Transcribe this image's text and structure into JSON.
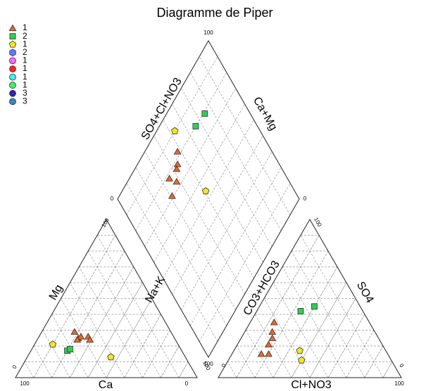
{
  "chart_data": {
    "type": "piper",
    "title": "Diagramme de Piper",
    "grid": true,
    "cations": {
      "bottom_label": "Ca",
      "left_label": "Mg",
      "right_label": "Na+K",
      "ticks": [
        0,
        100
      ]
    },
    "anions": {
      "bottom_label": "Cl+NO3",
      "left_label": "CO3+HCO3",
      "right_label": "SO4",
      "ticks": [
        0,
        100
      ]
    },
    "diamond": {
      "left_label": "SO4+Cl+NO3",
      "right_label": "Ca+Mg",
      "ticks": [
        0,
        100
      ]
    },
    "series": [
      {
        "name": "1",
        "marker": "triangle",
        "color": "#e8682a",
        "label_color": "#993300",
        "Mg": [
          29,
          25,
          26,
          26,
          24,
          24
        ],
        "NaK": [
          18,
          22,
          23,
          27,
          29,
          22
        ],
        "SO4": [
          35,
          29,
          25,
          21,
          15,
          15
        ],
        "Cl": [
          13,
          15,
          17,
          17,
          16,
          20
        ]
      },
      {
        "name": "2",
        "marker": "square",
        "color": "#33cc55",
        "label_color": "#006600",
        "Mg": [
          17,
          18
        ],
        "NaK": [
          20,
          21
        ],
        "SO4": [
          42,
          45
        ],
        "Cl": [
          24,
          30
        ]
      },
      {
        "name": "1",
        "marker": "pentagon",
        "color": "#f5e625",
        "label_color": "#999900",
        "Mg": [
          21,
          13
        ],
        "NaK": [
          10,
          46
        ],
        "SO4": [
          17,
          11
        ],
        "Cl": [
          36,
          40
        ]
      },
      {
        "name": "2",
        "marker": "hexagon",
        "color": "#6677ff",
        "label_color": "#3333cc",
        "Mg": [],
        "NaK": [],
        "SO4": [],
        "Cl": []
      },
      {
        "name": "1",
        "marker": "circle",
        "color": "#ff66ff",
        "label_color": "#cc33cc",
        "Mg": [],
        "NaK": [],
        "SO4": [],
        "Cl": []
      },
      {
        "name": "1",
        "marker": "circle",
        "color": "#ff2222",
        "label_color": "#cc0000",
        "Mg": [],
        "NaK": [],
        "SO4": [],
        "Cl": []
      },
      {
        "name": "1",
        "marker": "circle",
        "color": "#44eeee",
        "label_color": "#009999",
        "Mg": [],
        "NaK": [],
        "SO4": [],
        "Cl": []
      },
      {
        "name": "1",
        "marker": "circle",
        "color": "#44ee66",
        "label_color": "#009933",
        "Mg": [],
        "NaK": [],
        "SO4": [],
        "Cl": []
      },
      {
        "name": "3",
        "marker": "circle",
        "color": "#3322aa",
        "label_color": "#000080",
        "Mg": [],
        "NaK": [],
        "SO4": [],
        "Cl": []
      },
      {
        "name": "3",
        "marker": "circle",
        "color": "#3388bb",
        "label_color": "#006677",
        "Mg": [],
        "NaK": [],
        "SO4": [],
        "Cl": []
      }
    ]
  }
}
